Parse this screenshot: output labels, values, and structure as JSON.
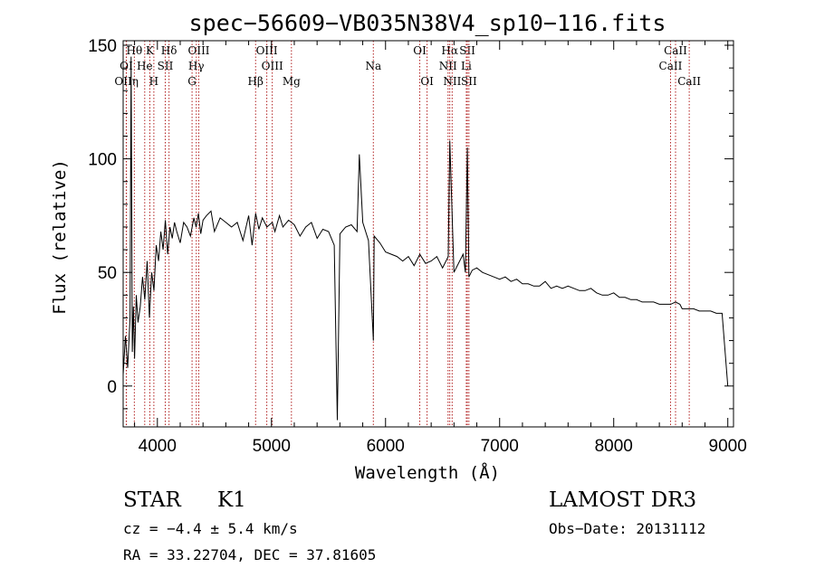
{
  "chart_data": {
    "type": "line",
    "title": "spec−56609−VB035N38V4_sp10−116.fits",
    "xlabel": "Wavelength (Å)",
    "ylabel": "Flux (relative)",
    "xlim": [
      3700,
      9050
    ],
    "ylim": [
      -18,
      152
    ],
    "xticks": [
      4000,
      5000,
      6000,
      7000,
      8000,
      9000
    ],
    "xtick_labels": [
      "4000",
      "5000",
      "6000",
      "7000",
      "8000",
      "9000"
    ],
    "yticks": [
      0,
      50,
      100,
      150
    ],
    "ytick_labels": [
      "0",
      "50",
      "100",
      "150"
    ],
    "grid": false,
    "series": [
      {
        "name": "spectrum",
        "x": [
          3700,
          3720,
          3740,
          3760,
          3770,
          3780,
          3790,
          3800,
          3815,
          3830,
          3850,
          3870,
          3890,
          3910,
          3930,
          3950,
          3970,
          3990,
          4010,
          4030,
          4050,
          4070,
          4090,
          4110,
          4130,
          4150,
          4170,
          4200,
          4230,
          4260,
          4290,
          4320,
          4340,
          4360,
          4380,
          4400,
          4430,
          4470,
          4500,
          4550,
          4600,
          4650,
          4700,
          4750,
          4800,
          4830,
          4861,
          4890,
          4920,
          4960,
          5007,
          5030,
          5070,
          5100,
          5150,
          5200,
          5250,
          5300,
          5350,
          5400,
          5450,
          5500,
          5550,
          5577,
          5600,
          5650,
          5700,
          5750,
          5770,
          5800,
          5850,
          5893,
          5900,
          5950,
          6000,
          6050,
          6100,
          6150,
          6200,
          6250,
          6300,
          6350,
          6400,
          6450,
          6500,
          6550,
          6563,
          6600,
          6650,
          6680,
          6700,
          6717,
          6731,
          6760,
          6800,
          6850,
          6900,
          6950,
          7000,
          7050,
          7100,
          7150,
          7200,
          7250,
          7300,
          7350,
          7400,
          7450,
          7500,
          7550,
          7600,
          7650,
          7700,
          7750,
          7800,
          7850,
          7900,
          7950,
          8000,
          8050,
          8100,
          8150,
          8200,
          8250,
          8300,
          8350,
          8400,
          8450,
          8500,
          8542,
          8580,
          8600,
          8650,
          8700,
          8750,
          8800,
          8850,
          8900,
          8950,
          9000
        ],
        "y": [
          5,
          22,
          8,
          30,
          145,
          15,
          35,
          12,
          40,
          28,
          35,
          48,
          38,
          55,
          30,
          50,
          42,
          62,
          55,
          68,
          60,
          73,
          58,
          70,
          65,
          72,
          68,
          63,
          72,
          70,
          66,
          74,
          70,
          76,
          67,
          73,
          75,
          77,
          68,
          74,
          72,
          70,
          72,
          64,
          75,
          62,
          76,
          69,
          74,
          70,
          72,
          68,
          75,
          70,
          73,
          71,
          66,
          70,
          72,
          65,
          69,
          68,
          62,
          -15,
          67,
          70,
          71,
          68,
          102,
          72,
          64,
          20,
          66,
          63,
          59,
          58,
          57,
          55,
          57,
          53,
          58,
          54,
          55,
          57,
          52,
          57,
          108,
          50,
          55,
          58,
          50,
          105,
          48,
          51,
          52,
          50,
          49,
          48,
          47,
          48,
          46,
          47,
          45,
          45,
          44,
          44,
          46,
          43,
          44,
          43,
          44,
          43,
          42,
          42,
          43,
          41,
          40,
          40,
          41,
          39,
          39,
          38,
          38,
          37,
          37,
          37,
          36,
          36,
          36,
          37,
          36,
          34,
          34,
          34,
          33,
          33,
          33,
          32,
          32,
          0
        ]
      }
    ],
    "spectral_lines": [
      {
        "label": "Hθ",
        "wavelength": 3798,
        "row": 1
      },
      {
        "label": "K",
        "wavelength": 3934,
        "row": 1
      },
      {
        "label": "Hδ",
        "wavelength": 4102,
        "row": 1
      },
      {
        "label": "OIII",
        "wavelength": 4363,
        "row": 1
      },
      {
        "label": "OIII",
        "wavelength": 4959,
        "row": 1
      },
      {
        "label": "OI",
        "wavelength": 6300,
        "row": 1
      },
      {
        "label": "Hα",
        "wavelength": 6563,
        "row": 1
      },
      {
        "label": "SII",
        "wavelength": 6717,
        "row": 1
      },
      {
        "label": "CaII",
        "wavelength": 8542,
        "row": 1
      },
      {
        "label": "OI",
        "wavelength": 3727,
        "row": 2
      },
      {
        "label": "He",
        "wavelength": 3889,
        "row": 2
      },
      {
        "label": "SII",
        "wavelength": 4069,
        "row": 2
      },
      {
        "label": "Hγ",
        "wavelength": 4341,
        "row": 2
      },
      {
        "label": "OIII",
        "wavelength": 5007,
        "row": 2
      },
      {
        "label": "NII",
        "wavelength": 6548,
        "row": 2
      },
      {
        "label": "Li",
        "wavelength": 6708,
        "row": 2
      },
      {
        "label": "CaII",
        "wavelength": 8498,
        "row": 2
      },
      {
        "label": "OIIη",
        "wavelength": 3729,
        "row": 3
      },
      {
        "label": "H",
        "wavelength": 3969,
        "row": 3
      },
      {
        "label": "G",
        "wavelength": 4304,
        "row": 3
      },
      {
        "label": "Hβ",
        "wavelength": 4861,
        "row": 3
      },
      {
        "label": "Mg",
        "wavelength": 5175,
        "row": 3
      },
      {
        "label": "Na",
        "wavelength": 5893,
        "row": 2
      },
      {
        "label": "OI",
        "wavelength": 6364,
        "row": 3
      },
      {
        "label": "NII",
        "wavelength": 6584,
        "row": 3
      },
      {
        "label": "SII",
        "wavelength": 6731,
        "row": 3
      },
      {
        "label": "CaII",
        "wavelength": 8662,
        "row": 3
      }
    ]
  },
  "info": {
    "class": "STAR",
    "subclass": "K1",
    "cz": "cz = −4.4 ± 5.4 km/s",
    "radec": "RA =  33.22704, DEC =  37.81605",
    "survey": "LAMOST DR3",
    "obsdate": "Obs−Date: 20131112"
  }
}
